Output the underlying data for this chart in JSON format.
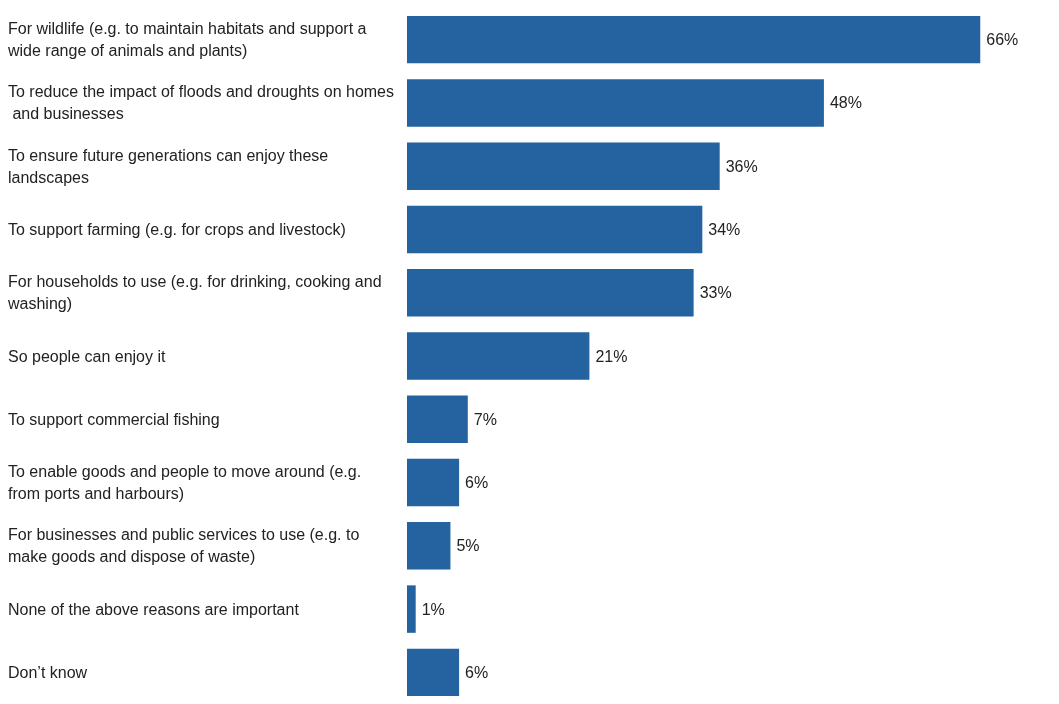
{
  "chart_data": {
    "type": "bar",
    "orientation": "horizontal",
    "categories": [
      "For wildlife (e.g. to maintain habitats and support a wide range of animals and plants)",
      "To reduce the impact of floods and droughts on homes and businesses",
      "To ensure future generations can enjoy these landscapes",
      "To support farming (e.g. for crops and livestock)",
      "For households to use (e.g. for drinking, cooking and washing)",
      "So people can enjoy it",
      "To support commercial fishing",
      "To enable goods and people to move around (e.g. from ports and harbours)",
      "For businesses and public services to use (e.g. to make goods and dispose of waste)",
      "None of the above reasons are important",
      "Don’t know"
    ],
    "values": [
      66,
      48,
      36,
      34,
      33,
      21,
      7,
      6,
      5,
      1,
      6
    ],
    "value_labels": [
      "66%",
      "48%",
      "36%",
      "34%",
      "33%",
      "21%",
      "7%",
      "6%",
      "5%",
      "1%",
      "6%"
    ],
    "color": "#2462a0",
    "tick_labels": "y"
  }
}
